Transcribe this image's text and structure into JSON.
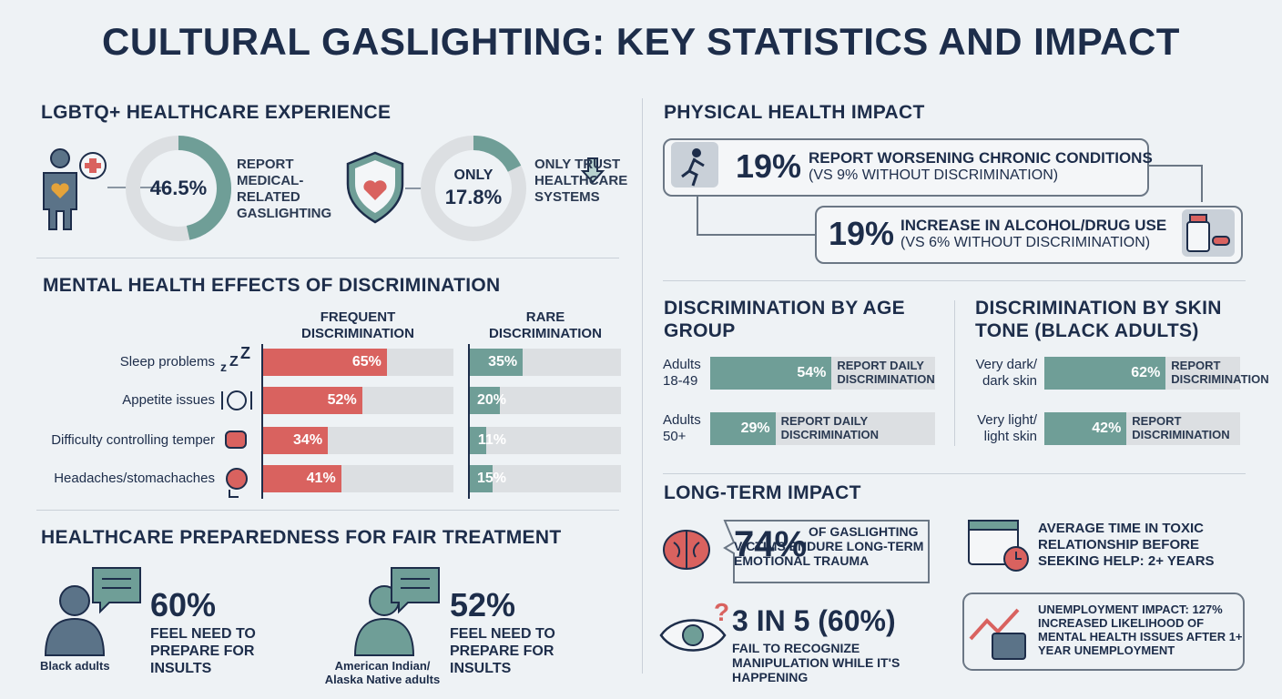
{
  "title": "CULTURAL GASLIGHTING: KEY STATISTICS AND IMPACT",
  "lgbtq": {
    "heading": "LGBTQ+ HEALTHCARE EXPERIENCE",
    "stats": [
      {
        "value": 46.5,
        "label": "46.5%",
        "text": "REPORT MEDICAL-RELATED GASLIGHTING"
      },
      {
        "prefix": "ONLY",
        "value": 17.8,
        "label": "17.8%",
        "text": "ONLY TRUST HEALTHCARE SYSTEMS"
      }
    ],
    "xlim": [
      0,
      100
    ],
    "color": "#6f9e97"
  },
  "mental_health": {
    "heading": "MENTAL HEALTH EFFECTS OF DISCRIMINATION",
    "categories": [
      "Sleep problems",
      "Appetite issues",
      "Difficulty controlling temper",
      "Headaches/stomachaches"
    ],
    "xlim": [
      0,
      100
    ],
    "series": [
      {
        "name": "FREQUENT DISCRIMINATION",
        "color": "#d9625f",
        "values": [
          65,
          52,
          34,
          41
        ],
        "value_labels": [
          "65%",
          "52%",
          "34%",
          "41%"
        ]
      },
      {
        "name": "RARE DISCRIMINATION",
        "color": "#6f9e97",
        "values": [
          35,
          20,
          11,
          15
        ],
        "value_labels": [
          "35%",
          "20%",
          "11%",
          "15%"
        ]
      }
    ]
  },
  "preparedness": {
    "heading": "HEALTHCARE PREPAREDNESS FOR FAIR TREATMENT",
    "groups": [
      {
        "name": "Black adults",
        "stat": "60%",
        "text": "FEEL NEED TO PREPARE FOR INSULTS"
      },
      {
        "name": "American Indian/ Alaska Native adults",
        "stat": "52%",
        "text": "FEEL NEED TO PREPARE FOR INSULTS"
      }
    ]
  },
  "physical": {
    "heading": "PHYSICAL HEALTH IMPACT",
    "items": [
      {
        "stat": "19%",
        "text": "REPORT WORSENING CHRONIC CONDITIONS",
        "note": "(VS 9% WITHOUT DISCRIMINATION)"
      },
      {
        "stat": "19%",
        "text": "INCREASE IN ALCOHOL/DRUG USE",
        "note": "(VS 6% WITHOUT DISCRIMINATION)"
      }
    ]
  },
  "age": {
    "heading": "DISCRIMINATION BY AGE GROUP",
    "xlim": [
      0,
      100
    ],
    "color": "#6f9e97",
    "categories": [
      "Adults 18-49",
      "Adults 50+"
    ],
    "values": [
      54,
      29
    ],
    "value_labels": [
      "54%",
      "29%"
    ],
    "annotations": [
      "REPORT DAILY DISCRIMINATION",
      "REPORT DAILY DISCRIMINATION"
    ]
  },
  "skin": {
    "heading": "DISCRIMINATION BY SKIN TONE (BLACK ADULTS)",
    "xlim": [
      0,
      100
    ],
    "color": "#6f9e97",
    "categories": [
      "Very dark/ dark skin",
      "Very light/ light skin"
    ],
    "values": [
      62,
      42
    ],
    "value_labels": [
      "62%",
      "42%"
    ],
    "annotations": [
      "REPORT DISCRIMINATION",
      "REPORT DISCRIMINATION"
    ]
  },
  "long_term": {
    "heading": "LONG-TERM IMPACT",
    "items": [
      {
        "stat": "74%",
        "text": "OF GASLIGHTING VICTIMS ENDURE LONG-TERM EMOTIONAL TRAUMA"
      },
      {
        "text": "AVERAGE TIME IN TOXIC RELATIONSHIP BEFORE SEEKING HELP: 2+ YEARS"
      },
      {
        "stat": "3 IN 5 (60%)",
        "text": "FAIL TO RECOGNIZE MANIPULATION WHILE IT'S HAPPENING"
      },
      {
        "text": "UNEMPLOYMENT IMPACT: 127% INCREASED LIKELIHOOD OF MENTAL HEALTH ISSUES AFTER 1+ YEAR UNEMPLOYMENT"
      }
    ]
  }
}
